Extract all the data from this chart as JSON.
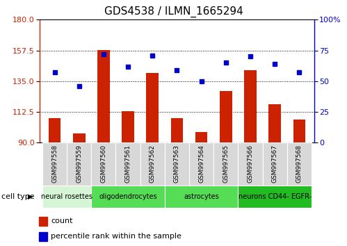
{
  "title": "GDS4538 / ILMN_1665294",
  "samples": [
    "GSM997558",
    "GSM997559",
    "GSM997560",
    "GSM997561",
    "GSM997562",
    "GSM997563",
    "GSM997564",
    "GSM997565",
    "GSM997566",
    "GSM997567",
    "GSM997568"
  ],
  "counts": [
    108,
    97,
    158,
    113,
    141,
    108,
    98,
    128,
    143,
    118,
    107
  ],
  "percentiles": [
    57,
    46,
    72,
    62,
    71,
    59,
    50,
    65,
    70,
    64,
    57
  ],
  "cell_types": [
    {
      "label": "neural rosettes",
      "start": 0,
      "end": 2,
      "color": "#d6f5d6"
    },
    {
      "label": "oligodendrocytes",
      "start": 2,
      "end": 5,
      "color": "#55dd55"
    },
    {
      "label": "astrocytes",
      "start": 5,
      "end": 8,
      "color": "#55dd55"
    },
    {
      "label": "neurons CD44- EGFR-",
      "start": 8,
      "end": 11,
      "color": "#22bb22"
    }
  ],
  "ylim_left": [
    90,
    180
  ],
  "ylim_right": [
    0,
    100
  ],
  "yticks_left": [
    90,
    112.5,
    135,
    157.5,
    180
  ],
  "yticks_right": [
    0,
    25,
    50,
    75,
    100
  ],
  "bar_color": "#cc2200",
  "dot_color": "#0000cc",
  "background_color": "#ffffff",
  "tick_gray": "#d0d0d0",
  "cell_type_label_color": "#000000",
  "title_fontsize": 11,
  "tick_fontsize": 8,
  "sample_fontsize": 6.5,
  "legend_fontsize": 8,
  "ct_fontsize": 7
}
